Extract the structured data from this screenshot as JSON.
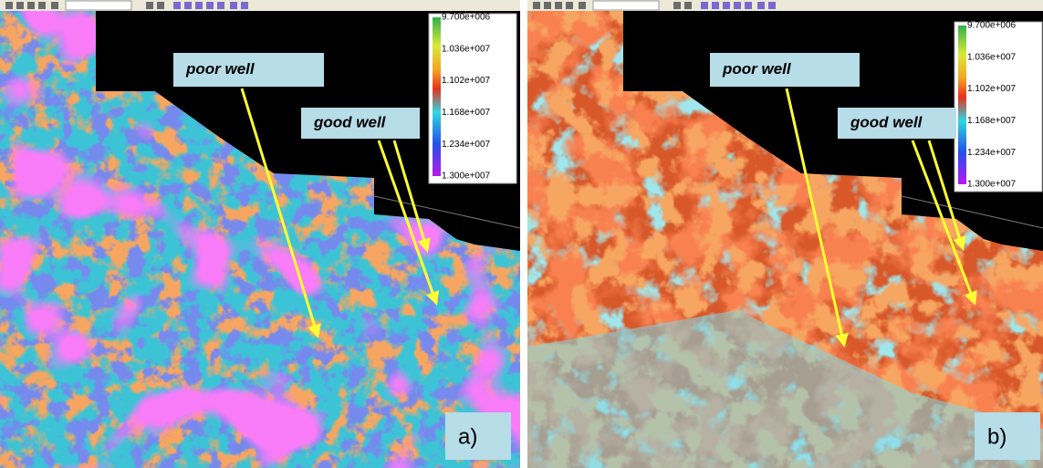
{
  "panels": [
    {
      "label": "a)",
      "notes": [
        "poor well",
        "good well"
      ],
      "colorbar": [
        "9.700e+006",
        "1.036e+007",
        "1.102e+007",
        "1.168e+007",
        "1.234e+007",
        "1.300e+007"
      ]
    },
    {
      "label": "b)",
      "notes": [
        "poor well",
        "good well"
      ],
      "colorbar": [
        "9.700e+006",
        "1.036e+007",
        "1.102e+007",
        "1.168e+007",
        "1.234e+007",
        "1.300e+007"
      ]
    }
  ]
}
